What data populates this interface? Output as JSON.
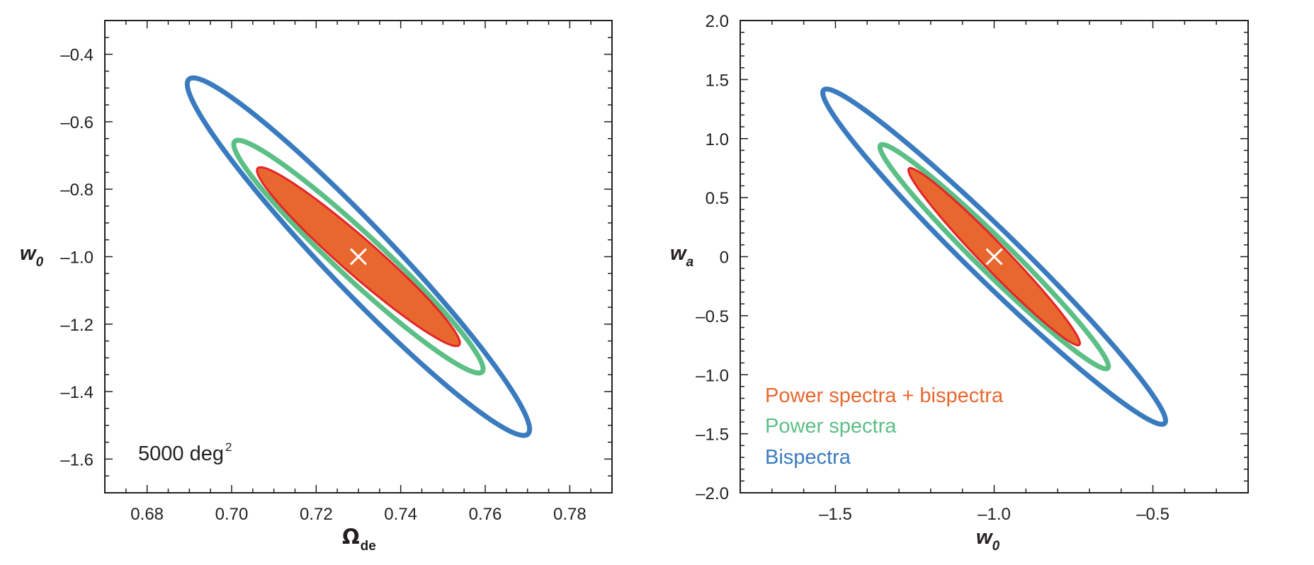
{
  "chart_data": [
    {
      "type": "contour",
      "title": "",
      "xlabel": {
        "symbol": "Ω",
        "subscript": "de"
      },
      "ylabel": {
        "symbol": "w",
        "subscript": "0"
      },
      "xlim": [
        0.67,
        0.79
      ],
      "ylim": [
        -1.7,
        -0.3
      ],
      "xticks": [
        0.68,
        0.7,
        0.72,
        0.74,
        0.76,
        0.78
      ],
      "xtick_labels": [
        "0.68",
        "0.70",
        "0.72",
        "0.74",
        "0.76",
        "0.78"
      ],
      "yticks": [
        -0.4,
        -0.6,
        -0.8,
        -1.0,
        -1.2,
        -1.4,
        -1.6
      ],
      "ytick_labels": [
        "–0.4",
        "–0.6",
        "–0.8",
        "–1.0",
        "–1.2",
        "–1.4",
        "–1.6"
      ],
      "grid": false,
      "annotation": {
        "text": "5000 deg",
        "superscript": "2"
      },
      "fiducial": {
        "x": 0.73,
        "y": -1.0,
        "marker": "×"
      },
      "series": [
        {
          "name": "Bispectra",
          "color": "#3a7bbf",
          "filled": false,
          "center": [
            0.73,
            -1.0
          ],
          "x_range": [
            0.6895,
            0.7705
          ],
          "y_range": [
            -1.53,
            -0.47
          ]
        },
        {
          "name": "Power spectra",
          "color": "#5cbf86",
          "filled": false,
          "center": [
            0.73,
            -1.0
          ],
          "x_range": [
            0.7005,
            0.7595
          ],
          "y_range": [
            -1.345,
            -0.655
          ]
        },
        {
          "name": "Power spectra + bispectra",
          "color": "#e8672f",
          "edge_color": "#e52428",
          "filled": true,
          "center": [
            0.73,
            -1.0
          ],
          "x_range": [
            0.706,
            0.754
          ],
          "y_range": [
            -1.265,
            -0.735
          ]
        }
      ]
    },
    {
      "type": "contour",
      "title": "",
      "xlabel": {
        "symbol": "w",
        "subscript": "0"
      },
      "ylabel": {
        "symbol": "w",
        "subscript": "a"
      },
      "xlim": [
        -1.8,
        -0.2
      ],
      "ylim": [
        -2.0,
        2.0
      ],
      "xticks": [
        -1.5,
        -1.0,
        -0.5
      ],
      "xtick_labels": [
        "–1.5",
        "–1.0",
        "–0.5"
      ],
      "yticks": [
        2.0,
        1.5,
        1.0,
        0.5,
        0,
        -0.5,
        -1.0,
        -1.5,
        -2.0
      ],
      "ytick_labels": [
        "2.0",
        "1.5",
        "1.0",
        "0.5",
        "0",
        "–0.5",
        "–1.0",
        "–1.5",
        "–2.0"
      ],
      "grid": false,
      "fiducial": {
        "x": -1.0,
        "y": 0.0,
        "marker": "×"
      },
      "legend": {
        "placement": "lower-left",
        "entries": [
          {
            "label": "Power spectra + bispectra",
            "color": "#e8672f"
          },
          {
            "label": "Power spectra",
            "color": "#5cbf86"
          },
          {
            "label": "Bispectra",
            "color": "#3a7bbf"
          }
        ]
      },
      "series": [
        {
          "name": "Bispectra",
          "color": "#3a7bbf",
          "filled": false,
          "center": [
            -1.0,
            0.0
          ],
          "x_range": [
            -1.54,
            -0.46
          ],
          "y_range": [
            -1.42,
            1.42
          ]
        },
        {
          "name": "Power spectra",
          "color": "#5cbf86",
          "filled": false,
          "center": [
            -1.0,
            0.0
          ],
          "x_range": [
            -1.36,
            -0.64
          ],
          "y_range": [
            -0.95,
            0.95
          ]
        },
        {
          "name": "Power spectra + bispectra",
          "color": "#e8672f",
          "edge_color": "#e52428",
          "filled": true,
          "center": [
            -1.0,
            0.0
          ],
          "x_range": [
            -1.27,
            -0.73
          ],
          "y_range": [
            -0.75,
            0.75
          ]
        }
      ]
    }
  ]
}
